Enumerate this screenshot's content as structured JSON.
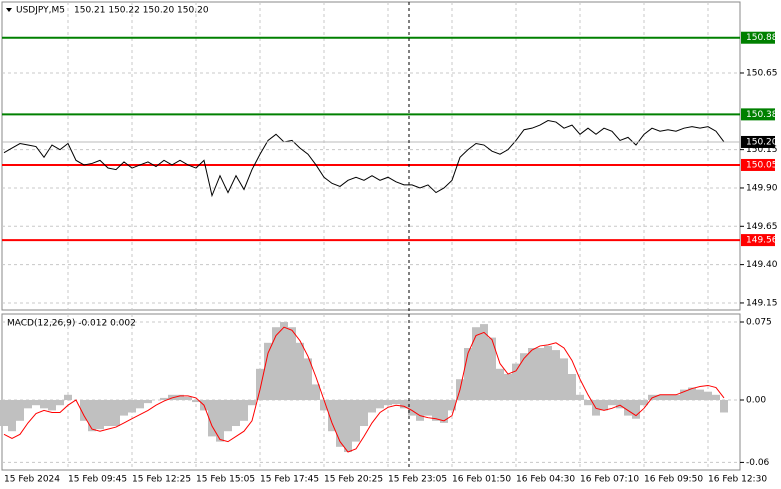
{
  "chart_data": [
    {
      "type": "line",
      "title": "USDJPY,M5",
      "subtitle": "150.21 150.22 150.20 150.20",
      "color": "#000000",
      "values": [
        150.13,
        150.16,
        150.19,
        150.18,
        150.17,
        150.1,
        150.18,
        150.15,
        150.19,
        150.08,
        150.05,
        150.06,
        150.08,
        150.03,
        150.02,
        150.07,
        150.03,
        150.05,
        150.07,
        150.04,
        150.08,
        150.05,
        150.08,
        150.05,
        150.03,
        150.08,
        149.85,
        149.98,
        149.87,
        149.98,
        149.89,
        150.02,
        150.12,
        150.21,
        150.25,
        150.2,
        150.21,
        150.16,
        150.12,
        150.05,
        149.97,
        149.93,
        149.91,
        149.95,
        149.97,
        149.95,
        149.98,
        149.95,
        149.97,
        149.94,
        149.92,
        149.92,
        149.9,
        149.92,
        149.87,
        149.9,
        149.95,
        150.1,
        150.15,
        150.19,
        150.18,
        150.14,
        150.12,
        150.15,
        150.21,
        150.28,
        150.29,
        150.31,
        150.34,
        150.33,
        150.29,
        150.31,
        150.25,
        150.29,
        150.25,
        150.29,
        150.27,
        150.21,
        150.23,
        150.18,
        150.25,
        150.29,
        150.27,
        150.28,
        150.27,
        150.29,
        150.3,
        150.29,
        150.3,
        150.27,
        150.2
      ],
      "levels": [
        {
          "value": 150.88,
          "color": "#008000"
        },
        {
          "value": 150.38,
          "color": "#008000"
        },
        {
          "value": 150.05,
          "color": "#ff0000"
        },
        {
          "value": 149.56,
          "color": "#ff0000"
        }
      ],
      "last": {
        "value": 150.2,
        "label": "150.20"
      },
      "ylim": [
        149.104,
        151.113
      ],
      "yticks": [
        150.65,
        150.15,
        {
          "value": 149.9,
          "label": "149.90"
        },
        149.65,
        {
          "value": 149.4,
          "label": "149.40"
        },
        149.15
      ],
      "grid": true
    },
    {
      "type": "macd",
      "title": "MACD(12,26,9) -0.012 0.002",
      "color": "#c0c0c0",
      "values": [
        -0.025,
        -0.03,
        -0.02,
        -0.008,
        -0.005,
        -0.008,
        -0.01,
        -0.005,
        0.005,
        0,
        -0.02,
        -0.03,
        -0.028,
        -0.025,
        -0.025,
        -0.015,
        -0.012,
        -0.008,
        -0.003,
        0,
        0.002,
        0.005,
        0.005,
        0.003,
        -0.002,
        -0.01,
        -0.035,
        -0.04,
        -0.03,
        -0.025,
        -0.02,
        -0.005,
        0.03,
        0.055,
        0.07,
        0.075,
        0.07,
        0.055,
        0.04,
        0.015,
        -0.01,
        -0.03,
        -0.045,
        -0.05,
        -0.04,
        -0.025,
        -0.012,
        -0.008,
        -0.005,
        -0.004,
        -0.008,
        -0.015,
        -0.02,
        -0.015,
        -0.02,
        -0.022,
        -0.01,
        0.02,
        0.05,
        0.07,
        0.073,
        0.06,
        0.03,
        0.025,
        0.035,
        0.045,
        0.05,
        0.05,
        0.052,
        0.048,
        0.04,
        0.025,
        0.005,
        -0.005,
        -0.015,
        -0.01,
        -0.005,
        -0.008,
        -0.015,
        -0.018,
        -0.005,
        0.005,
        0.005,
        0.005,
        0.005,
        0.01,
        0.012,
        0.01,
        0.008,
        0.005,
        -0.012
      ],
      "signal": {
        "color": "#ff0000",
        "values": [
          -0.033,
          -0.037,
          -0.033,
          -0.022,
          -0.013,
          -0.01,
          -0.012,
          -0.012,
          -0.005,
          0,
          -0.015,
          -0.028,
          -0.03,
          -0.028,
          -0.026,
          -0.022,
          -0.018,
          -0.014,
          -0.01,
          -0.005,
          -0.001,
          0.002,
          0.004,
          0.004,
          0.002,
          -0.005,
          -0.025,
          -0.038,
          -0.04,
          -0.035,
          -0.03,
          -0.02,
          0.01,
          0.045,
          0.062,
          0.07,
          0.067,
          0.057,
          0.042,
          0.022,
          0,
          -0.022,
          -0.04,
          -0.05,
          -0.047,
          -0.035,
          -0.022,
          -0.012,
          -0.007,
          -0.005,
          -0.006,
          -0.01,
          -0.015,
          -0.017,
          -0.018,
          -0.02,
          -0.015,
          0.01,
          0.045,
          0.062,
          0.065,
          0.058,
          0.035,
          0.025,
          0.028,
          0.04,
          0.048,
          0.052,
          0.053,
          0.055,
          0.05,
          0.038,
          0.02,
          0.005,
          -0.008,
          -0.01,
          -0.008,
          -0.005,
          -0.01,
          -0.015,
          -0.008,
          0.002,
          0.005,
          0.005,
          0.005,
          0.008,
          0.011,
          0.013,
          0.014,
          0.012,
          0.002
        ]
      },
      "categories": [
        "15 Feb 2024",
        null,
        null,
        null,
        null,
        null,
        null,
        null,
        "15 Feb 09:45",
        null,
        null,
        null,
        null,
        null,
        null,
        null,
        "15 Feb 12:25",
        null,
        null,
        null,
        null,
        null,
        null,
        null,
        "15 Feb 15:05",
        null,
        null,
        null,
        null,
        null,
        null,
        null,
        "15 Feb 17:45",
        null,
        null,
        null,
        null,
        null,
        null,
        null,
        "15 Feb 20:25",
        null,
        null,
        null,
        null,
        null,
        null,
        null,
        "15 Feb 23:05",
        null,
        null,
        null,
        null,
        null,
        null,
        null,
        "16 Feb 01:50",
        null,
        null,
        null,
        null,
        null,
        null,
        null,
        "16 Feb 04:30",
        null,
        null,
        null,
        null,
        null,
        null,
        null,
        "16 Feb 07:10",
        null,
        null,
        null,
        null,
        null,
        null,
        null,
        "16 Feb 09:50",
        null,
        null,
        null,
        null,
        null,
        null,
        null,
        "16 Feb 12:30",
        null,
        null
      ],
      "ylim": [
        -0.0673,
        0.0827
      ],
      "yticks": [
        0.075,
        {
          "value": 0,
          "label": "0.00"
        },
        -0.06
      ],
      "grid": true
    }
  ]
}
